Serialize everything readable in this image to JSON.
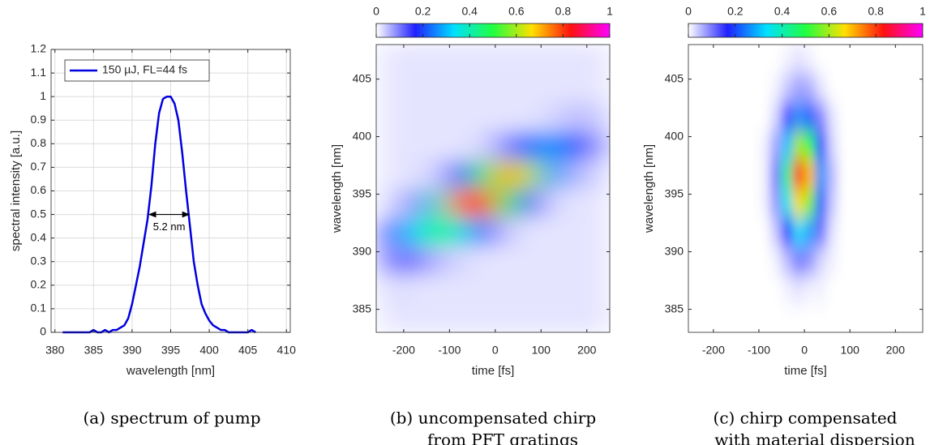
{
  "chart_data": [
    {
      "type": "line",
      "x": [
        381,
        384.5,
        385,
        385.5,
        386,
        386.5,
        387,
        387.5,
        388,
        388.5,
        389,
        389.5,
        390,
        390.5,
        391,
        391.5,
        392,
        392.5,
        393,
        393.5,
        394,
        394.5,
        395,
        395.5,
        396,
        396.5,
        397,
        397.5,
        398,
        398.5,
        399,
        399.5,
        400,
        400.5,
        401,
        401.5,
        402,
        402.5,
        405,
        405.5,
        406
      ],
      "series": [
        {
          "name": "150 µJ, FL=44 fs",
          "color": "#0000e0",
          "values": [
            0,
            0,
            0.01,
            0,
            0,
            0.01,
            0,
            0.01,
            0.01,
            0.02,
            0.03,
            0.06,
            0.12,
            0.2,
            0.28,
            0.38,
            0.48,
            0.62,
            0.8,
            0.93,
            0.99,
            1,
            1,
            0.97,
            0.9,
            0.76,
            0.6,
            0.45,
            0.3,
            0.2,
            0.12,
            0.08,
            0.05,
            0.03,
            0.02,
            0.01,
            0.01,
            0,
            0,
            0.01,
            0
          ]
        }
      ],
      "xlabel": "wavelength [nm]",
      "ylabel": "spectral intensity [a.u.]",
      "xlim": [
        379.5,
        410.5
      ],
      "xticks": [
        380,
        385,
        390,
        395,
        400,
        405,
        410
      ],
      "ylim": [
        0,
        1.2
      ],
      "yticks": [
        0,
        0.1,
        0.2,
        0.3,
        0.4,
        0.5,
        0.6,
        0.7,
        0.8,
        0.9,
        1,
        1.1,
        1.2
      ],
      "grid": true,
      "legend": "upper left",
      "annotation": {
        "text": "5.2 nm",
        "x": [
          392.2,
          397.4
        ],
        "y": 0.5
      },
      "caption": [
        "(a) spectrum of pump"
      ]
    },
    {
      "type": "heatmap",
      "xbins": [
        -250,
        -200,
        -150,
        -100,
        -50,
        0,
        50,
        100,
        150,
        200,
        250
      ],
      "ybins": [
        383,
        385.5,
        388,
        390.5,
        393,
        395.5,
        398,
        400.5,
        403,
        405.5,
        408
      ],
      "values": [
        [
          0.02,
          0.02,
          0.02,
          0.02,
          0.02,
          0.02,
          0.02,
          0.02,
          0.02,
          0.02
        ],
        [
          0.03,
          0.02,
          0.02,
          0.02,
          0.02,
          0.02,
          0.02,
          0.02,
          0.02,
          0.02
        ],
        [
          0.1,
          0.1,
          0.05,
          0.03,
          0.02,
          0.02,
          0.02,
          0.02,
          0.02,
          0.02
        ],
        [
          0.13,
          0.33,
          0.46,
          0.35,
          0.13,
          0.04,
          0.02,
          0.02,
          0.02,
          0.02
        ],
        [
          0.03,
          0.09,
          0.38,
          0.76,
          0.88,
          0.52,
          0.14,
          0.03,
          0.02,
          0.02
        ],
        [
          0.02,
          0.02,
          0.04,
          0.14,
          0.46,
          0.72,
          0.61,
          0.28,
          0.06,
          0.03
        ],
        [
          0.02,
          0.02,
          0.02,
          0.02,
          0.03,
          0.09,
          0.23,
          0.28,
          0.19,
          0.07
        ],
        [
          0.02,
          0.02,
          0.02,
          0.02,
          0.02,
          0.02,
          0.02,
          0.03,
          0.05,
          0.04
        ],
        [
          0.02,
          0.02,
          0.02,
          0.02,
          0.02,
          0.02,
          0.02,
          0.02,
          0.02,
          0.02
        ],
        [
          0.02,
          0.02,
          0.02,
          0.02,
          0.02,
          0.02,
          0.02,
          0.02,
          0.02,
          0.02
        ]
      ],
      "xlim": [
        -260,
        250
      ],
      "xticks": [
        -200,
        -100,
        0,
        100,
        200
      ],
      "ylim": [
        383,
        408
      ],
      "yticks": [
        385,
        390,
        395,
        400,
        405
      ],
      "xlabel": "time [fs]",
      "ylabel": "wavelength [nm]",
      "clim": [
        0,
        1
      ],
      "cticks": [
        0,
        0.2,
        0.4,
        0.6,
        0.8,
        1
      ],
      "colorscale": [
        "#ffffff",
        "#2020ff",
        "#00e0ff",
        "#20ff40",
        "#ffe000",
        "#ff1010",
        "#ff00ff"
      ],
      "caption": [
        "(b) uncompensated chirp",
        "from PFT gratings"
      ]
    },
    {
      "type": "heatmap",
      "xbins": [
        -250,
        -100,
        -75,
        -50,
        -25,
        0,
        25,
        50,
        75,
        100,
        250
      ],
      "ybins": [
        383,
        385.5,
        388,
        390.5,
        393,
        395.5,
        398,
        400.5,
        403,
        405.5,
        408
      ],
      "values": [
        [
          0,
          0,
          0,
          0,
          0,
          0,
          0,
          0,
          0,
          0
        ],
        [
          0,
          0,
          0,
          0.01,
          0.02,
          0.01,
          0.01,
          0,
          0,
          0
        ],
        [
          0,
          0,
          0.01,
          0.05,
          0.1,
          0.08,
          0.03,
          0.01,
          0,
          0
        ],
        [
          0,
          0,
          0.04,
          0.17,
          0.33,
          0.28,
          0.11,
          0.02,
          0,
          0
        ],
        [
          0,
          0.01,
          0.08,
          0.35,
          0.66,
          0.57,
          0.22,
          0.04,
          0,
          0
        ],
        [
          0,
          0.01,
          0.1,
          0.43,
          0.85,
          0.7,
          0.27,
          0.05,
          0,
          0
        ],
        [
          0,
          0.01,
          0.07,
          0.31,
          0.6,
          0.51,
          0.2,
          0.03,
          0,
          0
        ],
        [
          0,
          0,
          0.03,
          0.14,
          0.26,
          0.22,
          0.09,
          0.02,
          0,
          0
        ],
        [
          0,
          0,
          0.01,
          0.04,
          0.07,
          0.06,
          0.02,
          0,
          0,
          0
        ],
        [
          0,
          0,
          0,
          0.01,
          0.02,
          0.01,
          0,
          0,
          0,
          0
        ]
      ],
      "xlim": [
        -255,
        260
      ],
      "xticks": [
        -200,
        -100,
        0,
        100,
        200
      ],
      "ylim": [
        383,
        408
      ],
      "yticks": [
        385,
        390,
        395,
        400,
        405
      ],
      "xlabel": "time [fs]",
      "ylabel": "wavelength [nm]",
      "clim": [
        0,
        1
      ],
      "cticks": [
        0,
        0.2,
        0.4,
        0.6,
        0.8,
        1
      ],
      "colorscale": [
        "#ffffff",
        "#2020ff",
        "#00e0ff",
        "#20ff40",
        "#ffe000",
        "#ff1010",
        "#ff00ff"
      ],
      "caption": [
        "(c) chirp compensated",
        "with material dispersion"
      ]
    }
  ]
}
